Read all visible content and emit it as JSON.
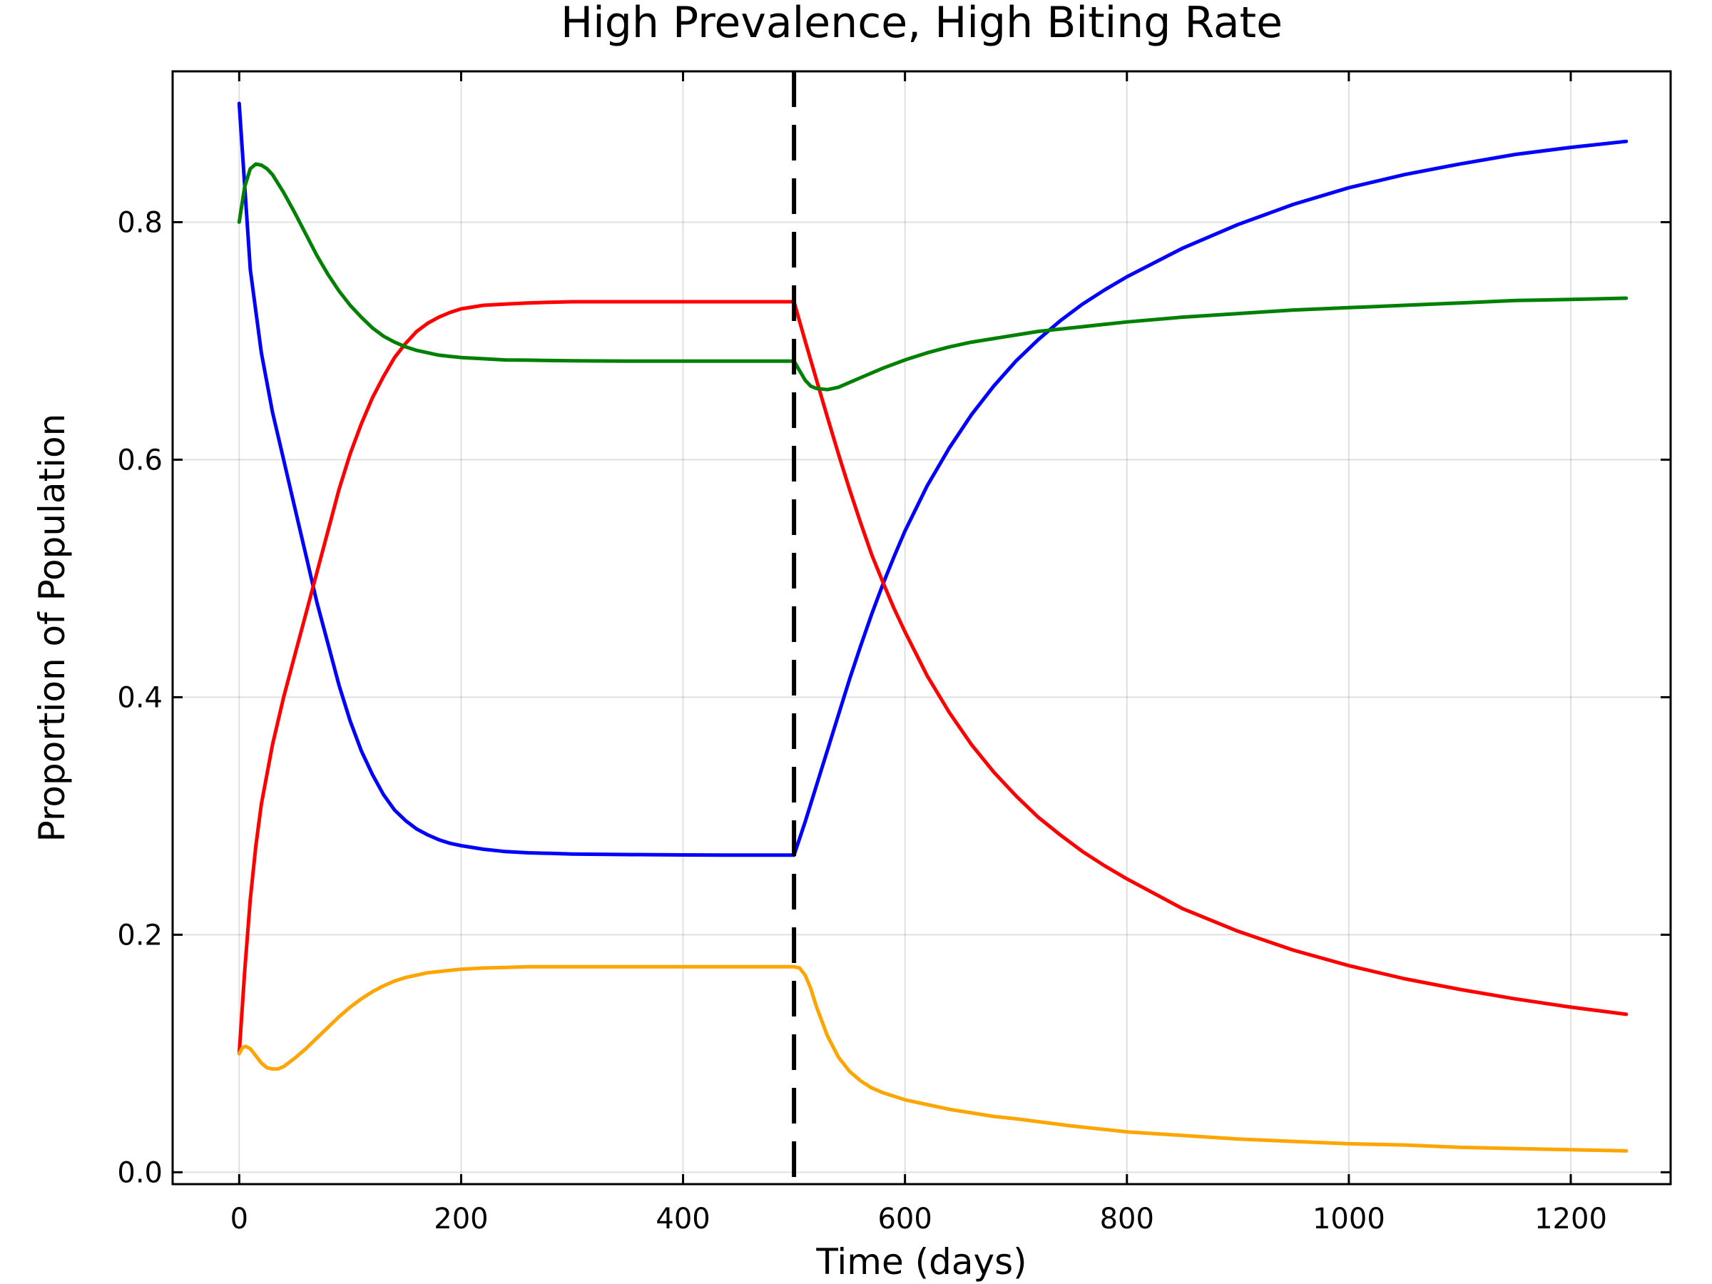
{
  "chart_data": {
    "type": "line",
    "title": "High Prevalence, High Biting Rate",
    "xlabel": "Time (days)",
    "ylabel": "Proportion of Population",
    "xlim": [
      -60,
      1290
    ],
    "ylim": [
      -0.01,
      0.927
    ],
    "xticks": [
      0,
      200,
      400,
      600,
      800,
      1000,
      1200
    ],
    "xtick_labels": [
      "0",
      "200",
      "400",
      "600",
      "800",
      "1000",
      "1200"
    ],
    "yticks": [
      0.0,
      0.2,
      0.4,
      0.6,
      0.8
    ],
    "ytick_labels": [
      "0.0",
      "0.2",
      "0.4",
      "0.6",
      "0.8"
    ],
    "grid": true,
    "legend": "none",
    "vertical_line": {
      "x": 500,
      "style": "dashed",
      "color": "#000000"
    },
    "series": [
      {
        "color": "#0000ff",
        "x": [
          0,
          10,
          20,
          30,
          40,
          50,
          60,
          70,
          80,
          90,
          100,
          110,
          120,
          130,
          140,
          150,
          160,
          170,
          180,
          190,
          200,
          220,
          240,
          260,
          280,
          300,
          350,
          400,
          450,
          500,
          510,
          520,
          530,
          540,
          550,
          560,
          570,
          580,
          590,
          600,
          620,
          640,
          660,
          680,
          700,
          720,
          740,
          760,
          780,
          800,
          850,
          900,
          950,
          1000,
          1050,
          1100,
          1150,
          1200,
          1250
        ],
        "y": [
          0.9,
          0.76,
          0.69,
          0.64,
          0.6,
          0.56,
          0.52,
          0.48,
          0.445,
          0.41,
          0.38,
          0.355,
          0.335,
          0.318,
          0.305,
          0.296,
          0.289,
          0.284,
          0.28,
          0.277,
          0.275,
          0.272,
          0.27,
          0.269,
          0.2685,
          0.268,
          0.2675,
          0.2672,
          0.267,
          0.267,
          0.295,
          0.325,
          0.355,
          0.385,
          0.415,
          0.443,
          0.47,
          0.495,
          0.518,
          0.54,
          0.578,
          0.61,
          0.638,
          0.662,
          0.683,
          0.701,
          0.717,
          0.731,
          0.743,
          0.754,
          0.778,
          0.798,
          0.815,
          0.829,
          0.84,
          0.849,
          0.857,
          0.863,
          0.868
        ]
      },
      {
        "color": "#ff0000",
        "x": [
          0,
          5,
          10,
          15,
          20,
          30,
          40,
          50,
          60,
          70,
          80,
          90,
          100,
          110,
          120,
          130,
          140,
          150,
          160,
          170,
          180,
          190,
          200,
          220,
          240,
          260,
          280,
          300,
          350,
          400,
          450,
          500,
          510,
          520,
          530,
          540,
          550,
          560,
          570,
          580,
          590,
          600,
          620,
          640,
          660,
          680,
          700,
          720,
          740,
          760,
          780,
          800,
          850,
          900,
          950,
          1000,
          1050,
          1100,
          1150,
          1200,
          1250
        ],
        "y": [
          0.1,
          0.17,
          0.23,
          0.275,
          0.31,
          0.36,
          0.4,
          0.435,
          0.47,
          0.505,
          0.54,
          0.575,
          0.605,
          0.63,
          0.652,
          0.67,
          0.686,
          0.698,
          0.708,
          0.715,
          0.72,
          0.724,
          0.727,
          0.73,
          0.731,
          0.732,
          0.7325,
          0.733,
          0.733,
          0.733,
          0.733,
          0.733,
          0.7,
          0.668,
          0.636,
          0.605,
          0.575,
          0.547,
          0.52,
          0.497,
          0.475,
          0.455,
          0.418,
          0.387,
          0.36,
          0.337,
          0.317,
          0.299,
          0.284,
          0.27,
          0.258,
          0.247,
          0.222,
          0.203,
          0.187,
          0.174,
          0.163,
          0.154,
          0.146,
          0.139,
          0.133
        ]
      },
      {
        "color": "#008000",
        "x": [
          0,
          5,
          10,
          15,
          20,
          25,
          30,
          40,
          50,
          60,
          70,
          80,
          90,
          100,
          110,
          120,
          130,
          140,
          150,
          160,
          170,
          180,
          190,
          200,
          220,
          240,
          260,
          280,
          300,
          350,
          400,
          450,
          500,
          505,
          510,
          515,
          520,
          530,
          540,
          550,
          560,
          580,
          600,
          620,
          640,
          660,
          680,
          700,
          720,
          740,
          760,
          780,
          800,
          850,
          900,
          950,
          1000,
          1050,
          1100,
          1150,
          1200,
          1250
        ],
        "y": [
          0.8,
          0.83,
          0.845,
          0.849,
          0.848,
          0.845,
          0.84,
          0.825,
          0.808,
          0.79,
          0.772,
          0.756,
          0.742,
          0.73,
          0.72,
          0.711,
          0.704,
          0.699,
          0.695,
          0.692,
          0.69,
          0.688,
          0.687,
          0.686,
          0.685,
          0.684,
          0.6838,
          0.6835,
          0.6833,
          0.683,
          0.683,
          0.683,
          0.683,
          0.675,
          0.667,
          0.662,
          0.66,
          0.659,
          0.661,
          0.665,
          0.669,
          0.677,
          0.684,
          0.69,
          0.695,
          0.699,
          0.702,
          0.705,
          0.708,
          0.71,
          0.712,
          0.714,
          0.716,
          0.72,
          0.723,
          0.726,
          0.728,
          0.73,
          0.732,
          0.734,
          0.735,
          0.736
        ]
      },
      {
        "color": "#ffa500",
        "x": [
          0,
          3,
          6,
          10,
          15,
          20,
          25,
          30,
          35,
          40,
          50,
          60,
          70,
          80,
          90,
          100,
          110,
          120,
          130,
          140,
          150,
          160,
          170,
          180,
          190,
          200,
          220,
          240,
          260,
          280,
          300,
          350,
          400,
          450,
          500,
          505,
          510,
          515,
          520,
          530,
          540,
          550,
          560,
          570,
          580,
          590,
          600,
          620,
          640,
          660,
          680,
          700,
          750,
          800,
          850,
          900,
          950,
          1000,
          1050,
          1100,
          1150,
          1200,
          1250
        ],
        "y": [
          0.1,
          0.105,
          0.106,
          0.104,
          0.098,
          0.092,
          0.088,
          0.087,
          0.087,
          0.089,
          0.096,
          0.104,
          0.113,
          0.122,
          0.131,
          0.139,
          0.146,
          0.152,
          0.157,
          0.161,
          0.164,
          0.166,
          0.168,
          0.169,
          0.17,
          0.171,
          0.172,
          0.1725,
          0.173,
          0.173,
          0.173,
          0.173,
          0.173,
          0.173,
          0.173,
          0.172,
          0.166,
          0.155,
          0.14,
          0.115,
          0.097,
          0.085,
          0.077,
          0.071,
          0.067,
          0.064,
          0.061,
          0.057,
          0.053,
          0.05,
          0.047,
          0.045,
          0.039,
          0.034,
          0.031,
          0.028,
          0.026,
          0.024,
          0.023,
          0.021,
          0.02,
          0.019,
          0.018
        ]
      }
    ]
  }
}
